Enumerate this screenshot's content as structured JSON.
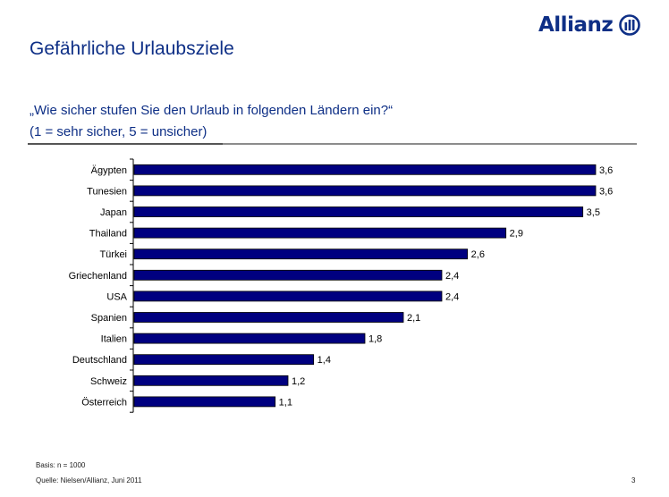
{
  "header": {
    "title": "Gefährliche Urlaubsziele",
    "brand": "Allianz",
    "question_line1": "„Wie sicher stufen Sie den Urlaub in folgenden Ländern ein?“",
    "question_line2": "(1 = sehr sicher, 5 = unsicher)",
    "brand_color": "#0e2f86"
  },
  "chart_data": {
    "type": "bar",
    "orientation": "horizontal",
    "title": "„Wie sicher stufen Sie den Urlaub in folgenden Ländern ein?“",
    "subtitle": "(1 = sehr sicher, 5 = unsicher)",
    "xlabel": "",
    "ylabel": "",
    "categories": [
      "Ägypten",
      "Tunesien",
      "Japan",
      "Thailand",
      "Türkei",
      "Griechenland",
      "USA",
      "Spanien",
      "Italien",
      "Deutschland",
      "Schweiz",
      "Österreich"
    ],
    "values": [
      3.6,
      3.6,
      3.5,
      2.9,
      2.6,
      2.4,
      2.4,
      2.1,
      1.8,
      1.4,
      1.2,
      1.1
    ],
    "value_labels": [
      "3,6",
      "3,6",
      "3,5",
      "2,9",
      "2,6",
      "2,4",
      "2,4",
      "2,1",
      "1,8",
      "1,4",
      "1,2",
      "1,1"
    ],
    "xlim": [
      0,
      3.6
    ],
    "grid": false,
    "legend": "none",
    "bar_color": "#000080"
  },
  "footer": {
    "basis": "Basis: n = 1000",
    "source": "Quelle: Nielsen/Allianz, Juni 2011",
    "page": "3"
  }
}
